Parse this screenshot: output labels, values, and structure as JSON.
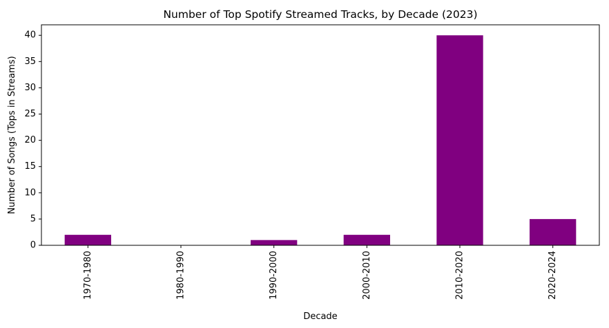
{
  "chart_data": {
    "type": "bar",
    "title": "Number of Top Spotify Streamed Tracks, by Decade (2023)",
    "xlabel": "Decade",
    "ylabel": "Number of Songs (Tops in Streams)",
    "categories": [
      "1970-1980",
      "1980-1990",
      "1990-2000",
      "2000-2010",
      "2010-2020",
      "2020-2024"
    ],
    "values": [
      2,
      0,
      1,
      2,
      40,
      5
    ],
    "ylim": [
      0,
      42
    ],
    "yticks": [
      0,
      5,
      10,
      15,
      20,
      25,
      30,
      35,
      40
    ],
    "bar_color": "#800080",
    "grid": false,
    "legend": "none"
  }
}
